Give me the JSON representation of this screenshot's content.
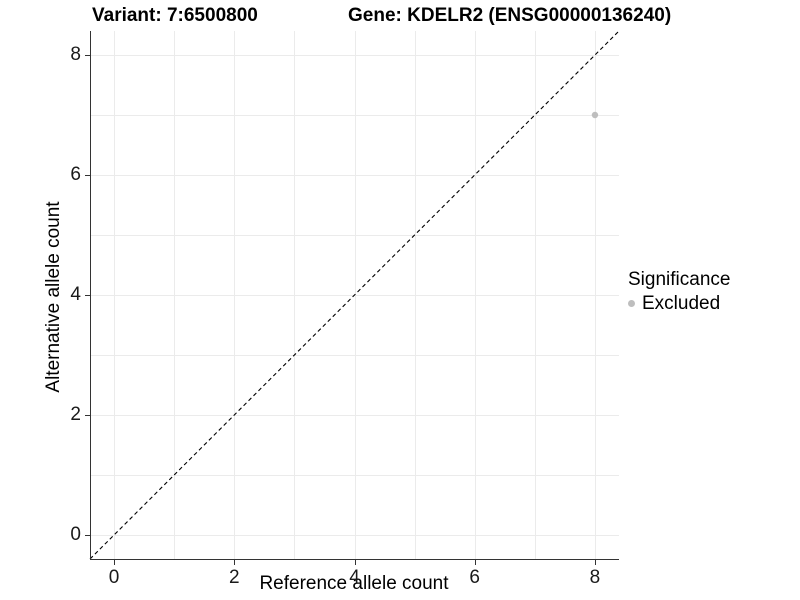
{
  "chart_data": {
    "type": "scatter",
    "title_left": "Variant: 7:6500800",
    "title_right": "Gene: KDELR2 (ENSG00000136240)",
    "xlabel": "Reference allele count",
    "ylabel": "Alternative allele count",
    "xlim": [
      -0.4,
      8.4
    ],
    "ylim": [
      -0.4,
      8.4
    ],
    "xticks": [
      0,
      2,
      4,
      6,
      8
    ],
    "yticks": [
      0,
      2,
      4,
      6,
      8
    ],
    "grid": {
      "show": true,
      "interval": 1,
      "color": "#ebebeb"
    },
    "reference_line": {
      "type": "identity",
      "style": "dashed",
      "color": "#000000"
    },
    "series": [
      {
        "name": "Excluded",
        "color": "#bebebe",
        "points": [
          {
            "x": 8,
            "y": 7
          }
        ]
      }
    ],
    "legend": {
      "title": "Significance",
      "position": "right",
      "entries": [
        {
          "label": "Excluded",
          "color": "#bebebe"
        }
      ]
    },
    "colors": {
      "axis_line": "#333333",
      "tick_text": "#1a1a1a",
      "background": "#ffffff"
    }
  }
}
